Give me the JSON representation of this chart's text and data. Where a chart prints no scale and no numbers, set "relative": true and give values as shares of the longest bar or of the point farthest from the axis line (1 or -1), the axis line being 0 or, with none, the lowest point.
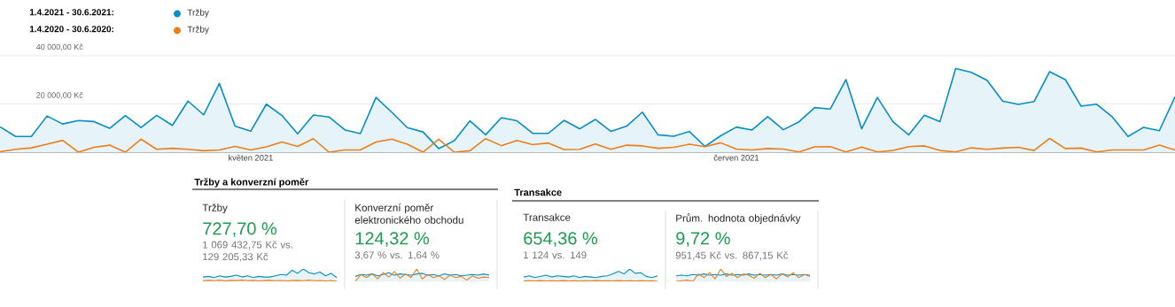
{
  "chart_data": [
    {
      "type": "line",
      "x": [
        "2021-04-15",
        "2021-04-16",
        "2021-04-17",
        "2021-04-18",
        "2021-04-19",
        "2021-04-20",
        "2021-04-21",
        "2021-04-22",
        "2021-04-23",
        "2021-04-24",
        "2021-04-25",
        "2021-04-26",
        "2021-04-27",
        "2021-04-28",
        "2021-04-29",
        "2021-04-30",
        "2021-05-01",
        "2021-05-02",
        "2021-05-03",
        "2021-05-04",
        "2021-05-05",
        "2021-05-06",
        "2021-05-07",
        "2021-05-08",
        "2021-05-09",
        "2021-05-10",
        "2021-05-11",
        "2021-05-12",
        "2021-05-13",
        "2021-05-14",
        "2021-05-15",
        "2021-05-16",
        "2021-05-17",
        "2021-05-18",
        "2021-05-19",
        "2021-05-20",
        "2021-05-21",
        "2021-05-22",
        "2021-05-23",
        "2021-05-24",
        "2021-05-25",
        "2021-05-26",
        "2021-05-27",
        "2021-05-28",
        "2021-05-29",
        "2021-05-30",
        "2021-05-31",
        "2021-06-01",
        "2021-06-02",
        "2021-06-03",
        "2021-06-04",
        "2021-06-05",
        "2021-06-06",
        "2021-06-07",
        "2021-06-08",
        "2021-06-09",
        "2021-06-10",
        "2021-06-11",
        "2021-06-12",
        "2021-06-13",
        "2021-06-14",
        "2021-06-15",
        "2021-06-16",
        "2021-06-17",
        "2021-06-18",
        "2021-06-19",
        "2021-06-20",
        "2021-06-21",
        "2021-06-22",
        "2021-06-23",
        "2021-06-24",
        "2021-06-25",
        "2021-06-26",
        "2021-06-27",
        "2021-06-28",
        "2021-06-29"
      ],
      "series": [
        {
          "name": "Tržby",
          "type": "area",
          "color": "#058dc7",
          "values": [
            10500,
            6500,
            6500,
            15000,
            11700,
            13100,
            12700,
            9900,
            15200,
            10200,
            15300,
            11100,
            21200,
            15500,
            28500,
            10800,
            8700,
            19900,
            15200,
            7600,
            15400,
            14600,
            9300,
            7700,
            22700,
            16600,
            10200,
            8400,
            1500,
            4800,
            13000,
            7200,
            14300,
            13000,
            7800,
            7800,
            13200,
            9700,
            13600,
            8600,
            10800,
            16600,
            7200,
            6600,
            8600,
            2400,
            6800,
            10400,
            9200,
            14700,
            9300,
            12600,
            18500,
            17900,
            30100,
            9700,
            22700,
            12600,
            7200,
            15300,
            12700,
            34700,
            33100,
            29800,
            21200,
            19800,
            21000,
            33400,
            30100,
            19100,
            19900,
            14600,
            6500,
            10300,
            8900,
            23000
          ]
        },
        {
          "name": "Tržby",
          "type": "line",
          "color": "#ed7e17",
          "values": [
            200,
            1200,
            1800,
            3300,
            4900,
            0,
            2000,
            2900,
            0,
            5400,
            1200,
            1600,
            1200,
            600,
            900,
            2400,
            900,
            2200,
            4200,
            2400,
            5600,
            0,
            900,
            900,
            4200,
            5400,
            3300,
            0,
            5400,
            0,
            600,
            5600,
            2700,
            4900,
            3100,
            3800,
            1100,
            1200,
            3400,
            1200,
            2900,
            2600,
            1600,
            2000,
            3300,
            2300,
            3900,
            1300,
            900,
            1500,
            1300,
            100,
            2200,
            2300,
            100,
            2100,
            100,
            700,
            2300,
            2600,
            700,
            100,
            1800,
            1200,
            1700,
            2000,
            700,
            5700,
            1500,
            1700,
            100,
            900,
            900,
            900,
            2900,
            900
          ]
        }
      ],
      "annotations": [
        "1.4.2021 - 30.6.2021:",
        "1.4.2020 - 30.6.2020:"
      ],
      "xlim": [
        "2021-04-15",
        "2021-06-29"
      ],
      "xticks": [
        {
          "value": "2021-05-01",
          "label": "květen 2021"
        },
        {
          "value": "2021-06-01",
          "label": "červen 2021"
        }
      ],
      "ylim": [
        0,
        40000
      ],
      "yticks": [
        {
          "value": 20000,
          "label": "20 000,00 Kč"
        },
        {
          "value": 40000,
          "label": "40 000,00 Kč"
        }
      ],
      "grid": "y",
      "legend": "top left"
    },
    {
      "type": "other",
      "title": "Tržby a konverzní poměr"
    },
    {
      "type": "line",
      "title": "Tržby",
      "subtitle": "727,70 %",
      "annotations": [
        "1 069 432,75 Kč vs. 129 205,33 Kč"
      ],
      "relative": true,
      "categories": [
        null,
        null,
        null,
        null,
        null,
        null,
        null,
        null,
        null,
        null,
        null,
        null,
        null,
        null,
        null,
        null,
        null,
        null,
        null,
        null,
        null,
        null,
        null,
        null,
        null
      ],
      "series": [
        {
          "type": "area",
          "color": "#058dc7",
          "values": [
            0.35,
            0.4,
            0.3,
            0.45,
            0.35,
            0.4,
            0.5,
            0.35,
            0.45,
            0.3,
            0.4,
            0.35,
            0.35,
            0.45,
            0.55,
            0.5,
            0.9,
            0.65,
            1.0,
            0.7,
            0.6,
            0.75,
            0.45,
            0.65,
            0.3
          ]
        },
        {
          "type": "line",
          "color": "#ed7e17",
          "values": [
            0.05,
            0.08,
            0.05,
            0.1,
            0.03,
            0.08,
            0.06,
            0.1,
            0.05,
            0.08,
            0.04,
            0.06,
            0.08,
            0.05,
            0.07,
            0.04,
            0.06,
            0.08,
            0.05,
            0.1,
            0.05,
            0.06,
            0.04,
            0.07,
            0.0
          ]
        }
      ]
    },
    {
      "type": "line",
      "title": "Konverzní poměr elektronického obchodu",
      "subtitle": "124,32 %",
      "annotations": [
        "3,67 % vs. 1,64 %"
      ],
      "relative": true,
      "categories": [
        null,
        null,
        null,
        null,
        null,
        null,
        null,
        null,
        null,
        null,
        null,
        null,
        null,
        null,
        null,
        null,
        null,
        null,
        null,
        null,
        null,
        null,
        null,
        null,
        null
      ],
      "series": [
        {
          "type": "area",
          "color": "#058dc7",
          "values": [
            0.4,
            0.55,
            0.5,
            0.6,
            0.45,
            0.55,
            0.7,
            0.5,
            0.6,
            0.55,
            0.5,
            0.6,
            0.65,
            0.5,
            0.55,
            0.45,
            0.6,
            0.5,
            0.55,
            0.45,
            0.5,
            0.55,
            0.5,
            0.6,
            0.5
          ]
        },
        {
          "type": "line",
          "color": "#ed7e17",
          "values": [
            0.0,
            0.55,
            0.3,
            0.6,
            0.2,
            0.7,
            0.35,
            0.8,
            0.25,
            0.6,
            0.3,
            1.0,
            0.2,
            0.55,
            0.3,
            0.45,
            0.15,
            0.5,
            0.3,
            0.4,
            0.1,
            0.45,
            0.25,
            0.35,
            0.3
          ]
        }
      ]
    },
    {
      "type": "other",
      "title": "Transakce"
    },
    {
      "type": "line",
      "title": "Transakce",
      "subtitle": "654,36 %",
      "annotations": [
        "1 124 vs. 149"
      ],
      "relative": true,
      "categories": [
        null,
        null,
        null,
        null,
        null,
        null,
        null,
        null,
        null,
        null,
        null,
        null,
        null,
        null,
        null,
        null,
        null,
        null,
        null,
        null,
        null,
        null,
        null,
        null,
        null
      ],
      "series": [
        {
          "type": "area",
          "color": "#058dc7",
          "values": [
            0.35,
            0.45,
            0.3,
            0.4,
            0.5,
            0.35,
            0.45,
            0.4,
            0.35,
            0.45,
            0.3,
            0.4,
            0.35,
            0.3,
            0.4,
            0.45,
            0.6,
            0.8,
            0.6,
            1.0,
            0.65,
            0.7,
            0.4,
            0.3,
            0.45
          ]
        },
        {
          "type": "line",
          "color": "#ed7e17",
          "values": [
            0.03,
            0.05,
            0.04,
            0.06,
            0.03,
            0.05,
            0.04,
            0.06,
            0.03,
            0.05,
            0.04,
            0.05,
            0.03,
            0.06,
            0.04,
            0.05,
            0.03,
            0.06,
            0.04,
            0.05,
            0.03,
            0.05,
            0.04,
            0.05,
            0.0
          ]
        }
      ]
    },
    {
      "type": "line",
      "title": "Prům. hodnota objednávky",
      "subtitle": "9,72 %",
      "annotations": [
        "951,45 Kč vs. 867,15 Kč"
      ],
      "relative": true,
      "categories": [
        null,
        null,
        null,
        null,
        null,
        null,
        null,
        null,
        null,
        null,
        null,
        null,
        null,
        null,
        null,
        null,
        null,
        null,
        null,
        null,
        null,
        null,
        null,
        null,
        null
      ],
      "series": [
        {
          "type": "area",
          "color": "#058dc7",
          "values": [
            0.45,
            0.5,
            0.45,
            0.55,
            0.5,
            0.6,
            0.5,
            0.55,
            0.5,
            0.6,
            0.5,
            0.55,
            0.5,
            0.6,
            0.5,
            0.55,
            0.5,
            0.55,
            0.5,
            0.6,
            0.5,
            0.55,
            0.5,
            0.55,
            0.5
          ]
        },
        {
          "type": "line",
          "color": "#ed7e17",
          "values": [
            0.0,
            0.05,
            0.1,
            0.0,
            0.6,
            0.3,
            0.7,
            0.2,
            1.0,
            0.4,
            0.65,
            0.3,
            0.6,
            0.5,
            0.25,
            0.65,
            0.3,
            0.55,
            0.2,
            0.6,
            0.35,
            0.7,
            0.3,
            0.55,
            0.4
          ]
        }
      ]
    }
  ]
}
